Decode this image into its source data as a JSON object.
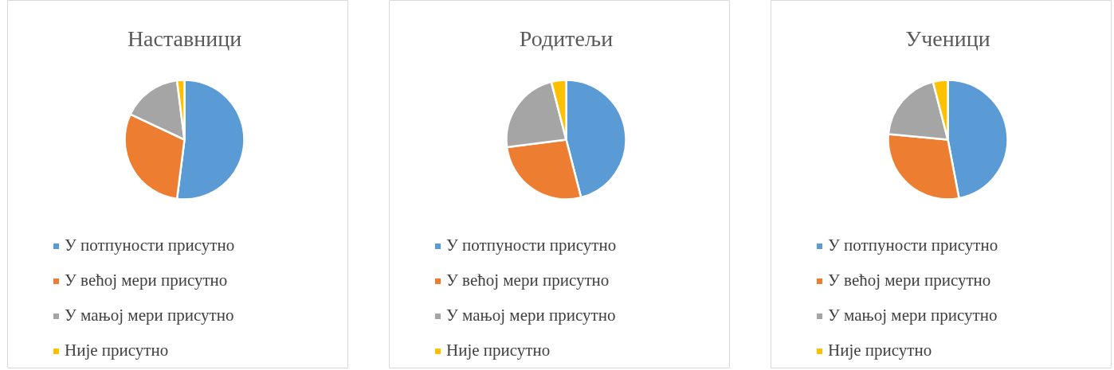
{
  "chart_data": [
    {
      "type": "pie",
      "title": "Наставници",
      "categories": [
        "У потпуности присутно",
        "У већој мери присутно",
        "У мањој мери присутно",
        "Није присутно"
      ],
      "values": [
        52,
        30,
        16,
        2
      ],
      "colors": [
        "#5b9bd5",
        "#ed7d31",
        "#a5a5a5",
        "#ffc000"
      ],
      "legend": "bottom"
    },
    {
      "type": "pie",
      "title": "Родитељи",
      "categories": [
        "У потпуности присутно",
        "У већој мери присутно",
        "У мањој мери присутно",
        "Није присутно"
      ],
      "values": [
        46,
        27,
        23,
        4
      ],
      "colors": [
        "#5b9bd5",
        "#ed7d31",
        "#a5a5a5",
        "#ffc000"
      ],
      "legend": "bottom"
    },
    {
      "type": "pie",
      "title": "Ученици",
      "categories": [
        "У потпуности присутно",
        "У већој мери присутно",
        "У мањој мери присутно",
        "Није присутно"
      ],
      "values": [
        47,
        29.5,
        19.5,
        4
      ],
      "colors": [
        "#5b9bd5",
        "#ed7d31",
        "#a5a5a5",
        "#ffc000"
      ],
      "legend": "bottom"
    }
  ]
}
